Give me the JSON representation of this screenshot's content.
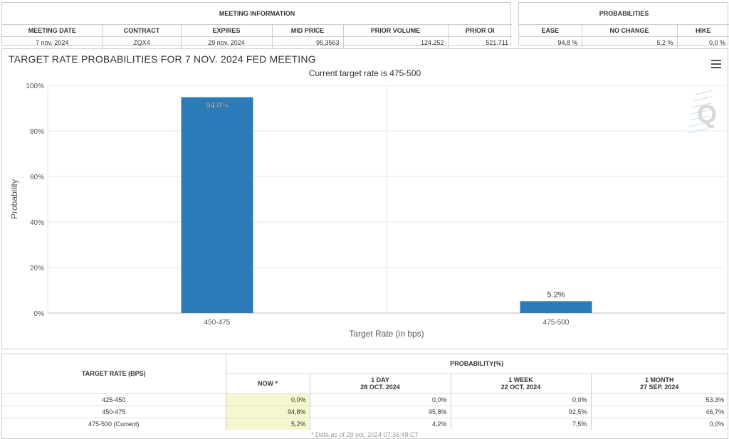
{
  "meeting_info": {
    "header": "MEETING INFORMATION",
    "columns": [
      "MEETING DATE",
      "CONTRACT",
      "EXPIRES",
      "MID PRICE",
      "PRIOR VOLUME",
      "PRIOR OI"
    ],
    "values": [
      "7 nov. 2024",
      "ZQX4",
      "29 nov. 2024",
      "95,3563",
      "124.252",
      "521.711"
    ]
  },
  "probabilities": {
    "header": "PROBABILITIES",
    "columns": [
      "EASE",
      "NO CHANGE",
      "HIKE"
    ],
    "values": [
      "94,8 %",
      "5,2 %",
      "0,0 %"
    ]
  },
  "chart": {
    "title": "TARGET RATE PROBABILITIES FOR 7 NOV. 2024 FED MEETING",
    "subtitle": "Current target rate is 475-500",
    "menu_icon": "hamburger-menu-icon",
    "logo_icon": "Q-logo-icon",
    "bar_color": "#2b7bb9"
  },
  "chart_data": {
    "type": "bar",
    "categories": [
      "450-475",
      "475-500"
    ],
    "values": [
      94.8,
      5.2
    ],
    "data_labels": [
      "94.8%",
      "5.2%"
    ],
    "title": "TARGET RATE PROBABILITIES FOR 7 NOV. 2024 FED MEETING",
    "subtitle": "Current target rate is 475-500",
    "xlabel": "Target Rate (in bps)",
    "ylabel": "Probability",
    "ylim": [
      0,
      100
    ],
    "yticks": [
      "0%",
      "20%",
      "40%",
      "60%",
      "80%",
      "100%"
    ],
    "ytick_values": [
      0,
      20,
      40,
      60,
      80,
      100
    ],
    "grid": true
  },
  "prob_table": {
    "rowheader": "TARGET RATE (BPS)",
    "group_header": "PROBABILITY(%)",
    "columns": [
      {
        "label": "NOW *",
        "date": ""
      },
      {
        "label": "1 DAY",
        "date": "28 OCT. 2024"
      },
      {
        "label": "1 WEEK",
        "date": "22 OCT. 2024"
      },
      {
        "label": "1 MONTH",
        "date": "27 SEP. 2024"
      }
    ],
    "rows": [
      {
        "rate": "425-450",
        "values": [
          "0,0%",
          "0,0%",
          "0,0%",
          "53,3%"
        ]
      },
      {
        "rate": "450-475",
        "values": [
          "94,8%",
          "95,8%",
          "92,5%",
          "46,7%"
        ]
      },
      {
        "rate": "475-500 (Current)",
        "values": [
          "5,2%",
          "4,2%",
          "7,5%",
          "0,0%"
        ]
      }
    ],
    "footnote": "* Data as of 29 oct. 2024 07:36:48 CT"
  }
}
